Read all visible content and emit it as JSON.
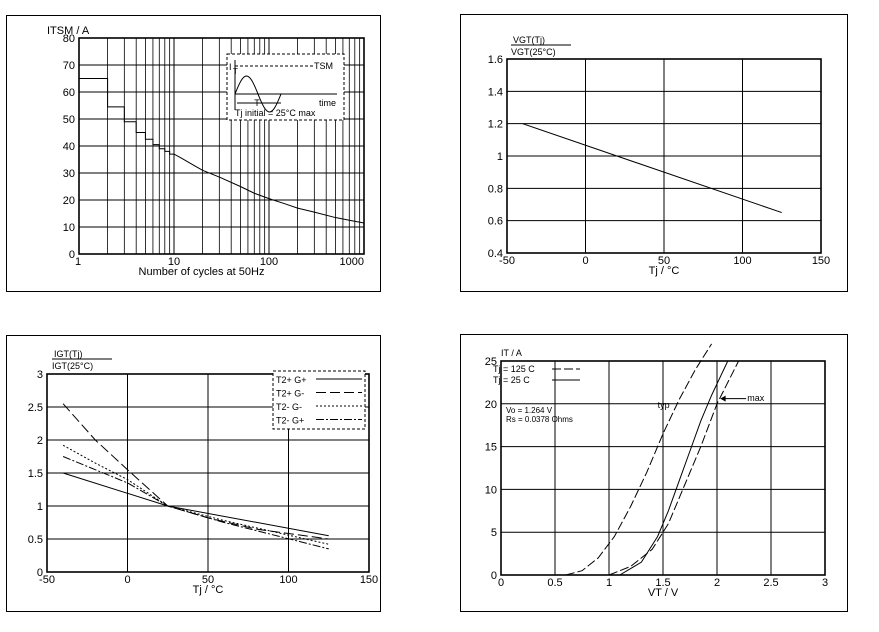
{
  "chart_data": [
    {
      "type": "line",
      "title": "",
      "xlabel": "Number of cycles at 50Hz",
      "ylabel": "ITSM / A",
      "xscale": "log",
      "xlim": [
        1,
        1000
      ],
      "ylim": [
        0,
        80
      ],
      "grid": true,
      "xticks": [
        "1",
        "10",
        "100",
        "1000"
      ],
      "yticks": [
        "0",
        "10",
        "20",
        "30",
        "40",
        "50",
        "60",
        "70",
        "80"
      ],
      "series": [
        {
          "x": [
            1,
            2,
            2,
            3,
            3,
            4,
            4,
            5,
            5,
            6,
            6,
            7,
            7,
            8,
            8,
            9,
            9,
            10,
            12,
            15,
            20,
            30,
            50,
            70,
            100,
            150,
            200,
            300,
            500,
            700,
            1000
          ],
          "y": [
            65,
            65,
            54.5,
            54.5,
            49,
            49,
            45,
            45,
            42.5,
            42.5,
            40.5,
            40.5,
            39,
            39,
            38,
            38,
            37,
            37,
            35.5,
            33.5,
            31,
            28.5,
            25,
            22.5,
            20.5,
            18.5,
            17,
            15.5,
            13.5,
            12.5,
            11.5
          ]
        }
      ],
      "inset": {
        "y_label": "I",
        "y_label_sub": "T",
        "pulse_label": "TSM",
        "period_label": "T",
        "x_label": "time",
        "note": "Tj initial = 25°C max"
      }
    },
    {
      "type": "line",
      "title": "",
      "xlabel": "Tj / °C",
      "ylabel_numerator": "VGT(Tj)",
      "ylabel_denominator": "VGT(25°C)",
      "xlim": [
        -50,
        150
      ],
      "ylim": [
        0.4,
        1.6
      ],
      "grid": true,
      "xticks": [
        "-50",
        "0",
        "50",
        "100",
        "150"
      ],
      "yticks": [
        "0.4",
        "0.6",
        "0.8",
        "1",
        "1.2",
        "1.4",
        "1.6"
      ],
      "series": [
        {
          "x": [
            -40,
            125
          ],
          "y": [
            1.2,
            0.65
          ]
        }
      ]
    },
    {
      "type": "line",
      "title": "",
      "xlabel": "Tj / °C",
      "ylabel_numerator": "IGT(Tj)",
      "ylabel_denominator": "IGT(25°C)",
      "xlim": [
        -50,
        150
      ],
      "ylim": [
        0,
        3
      ],
      "grid": true,
      "legend_position": "top-right",
      "xticks": [
        "-50",
        "0",
        "50",
        "100",
        "150"
      ],
      "yticks": [
        "0",
        "0.5",
        "1",
        "1.5",
        "2",
        "2.5",
        "3"
      ],
      "series": [
        {
          "name": "T2+ G+",
          "style": "solid",
          "x": [
            -40,
            25,
            125
          ],
          "y": [
            1.5,
            1.0,
            0.55
          ]
        },
        {
          "name": "T2+ G-",
          "style": "long-dash",
          "x": [
            -40,
            -20,
            0,
            25,
            50,
            80,
            125
          ],
          "y": [
            2.55,
            2.0,
            1.55,
            1.0,
            0.82,
            0.65,
            0.5
          ]
        },
        {
          "name": "T2- G-",
          "style": "dotted",
          "x": [
            -40,
            -20,
            0,
            25,
            60,
            125
          ],
          "y": [
            1.92,
            1.65,
            1.4,
            1.0,
            0.78,
            0.42
          ]
        },
        {
          "name": "T2- G+",
          "style": "dash-dot",
          "x": [
            -40,
            -20,
            0,
            25,
            60,
            125
          ],
          "y": [
            1.75,
            1.55,
            1.35,
            1.0,
            0.75,
            0.35
          ]
        }
      ]
    },
    {
      "type": "line",
      "title": "",
      "xlabel": "VT / V",
      "ylabel": "IT / A",
      "xlim": [
        0,
        3
      ],
      "ylim": [
        0,
        25
      ],
      "grid": true,
      "legend_position": "top-left",
      "xticks": [
        "0",
        "0.5",
        "1",
        "1.5",
        "2",
        "2.5",
        "3"
      ],
      "yticks": [
        "0",
        "5",
        "10",
        "15",
        "20",
        "25"
      ],
      "annotations": [
        "typ",
        "max"
      ],
      "info_lines": [
        "Vo = 1.264 V",
        "Rs = 0.0378 Ohms"
      ],
      "series": [
        {
          "name": "Tj = 125 C",
          "style": "dashed",
          "curve": "typ",
          "x": [
            0.6,
            0.75,
            0.9,
            1.05,
            1.2,
            1.35,
            1.5,
            1.65,
            1.8,
            1.95
          ],
          "y": [
            0,
            0.5,
            2,
            4.5,
            8,
            12,
            16.5,
            20.5,
            24,
            27
          ]
        },
        {
          "name": "Tj = 125 C",
          "style": "dashed",
          "curve": "max",
          "x": [
            1.0,
            1.2,
            1.4,
            1.55,
            1.7,
            1.85,
            2.0,
            2.2
          ],
          "y": [
            0,
            1,
            3,
            6,
            10.5,
            15,
            20,
            25
          ]
        },
        {
          "name": "Tj = 25 C",
          "style": "solid",
          "x": [
            1.1,
            1.3,
            1.45,
            1.55,
            1.65,
            1.75,
            1.85,
            1.95,
            2.1
          ],
          "y": [
            0,
            1.5,
            4.5,
            7.5,
            11,
            14.5,
            18,
            21,
            25
          ]
        }
      ]
    }
  ]
}
